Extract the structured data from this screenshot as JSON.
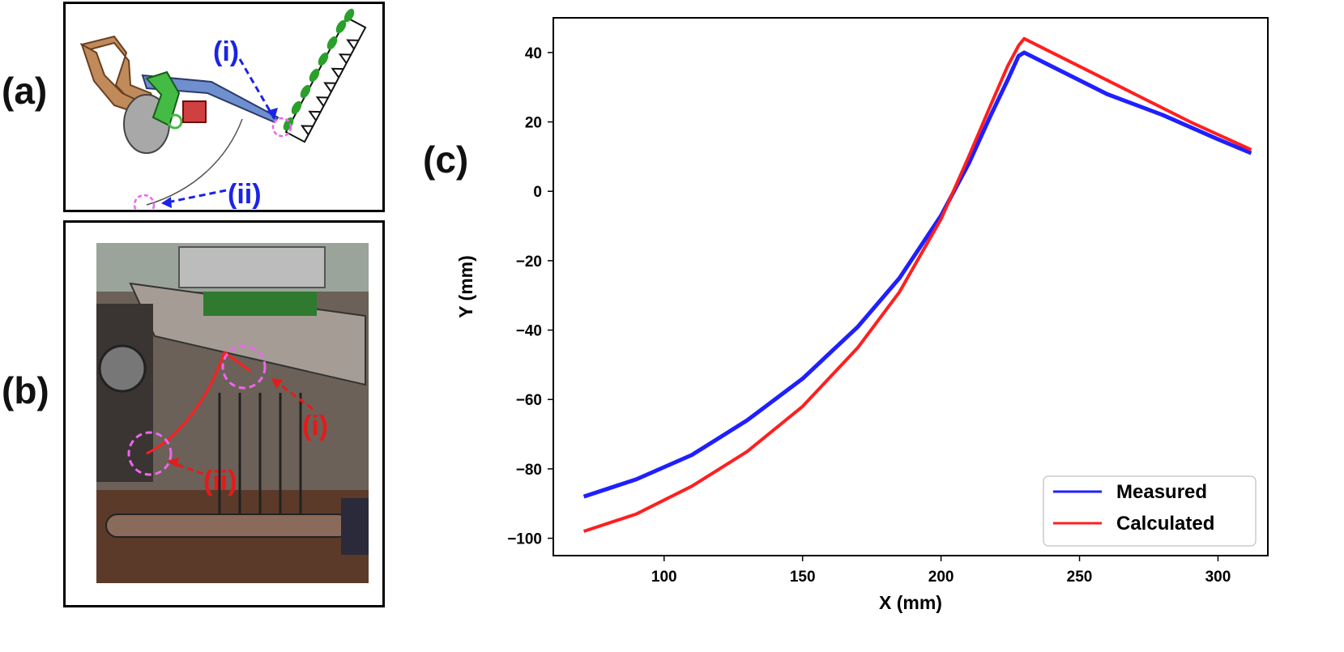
{
  "panels": {
    "a": {
      "label": "(a)",
      "callouts": {
        "i": "(i)",
        "ii": "(ii)"
      },
      "colors": {
        "callout": "#1a24e6",
        "circle": "#ee66ee",
        "frame": "#c08a5a",
        "arm": "#6f8fcf",
        "gear": "#44bb44",
        "block": "#d04040",
        "leaf": "#2aa02a"
      }
    },
    "b": {
      "label": "(b)",
      "callouts": {
        "i": "(i)",
        "ii": "(ii)"
      },
      "colors": {
        "callout": "#e61a1a",
        "circle": "#ee66ee"
      }
    },
    "c": {
      "label": "(c)"
    }
  },
  "chart_data": {
    "type": "line",
    "title": "",
    "xlabel": "X (mm)",
    "ylabel": "Y (mm)",
    "xlim": [
      60,
      318
    ],
    "ylim": [
      -105,
      50
    ],
    "xticks": [
      100,
      150,
      200,
      250,
      300
    ],
    "yticks": [
      -100,
      -80,
      -60,
      -40,
      -20,
      0,
      20,
      40
    ],
    "grid": false,
    "legend_position": "bottom-right",
    "series": [
      {
        "name": "Measured",
        "color": "#1f1fff",
        "x": [
          71,
          90,
          110,
          130,
          150,
          170,
          185,
          200,
          210,
          218,
          224,
          228,
          230,
          240,
          260,
          280,
          300,
          312
        ],
        "y": [
          -88,
          -83,
          -76,
          -66,
          -54,
          -39,
          -25,
          -7,
          8,
          22,
          32,
          39,
          40,
          36,
          28,
          22,
          15,
          11
        ]
      },
      {
        "name": "Calculated",
        "color": "#ff1f1f",
        "x": [
          71,
          90,
          110,
          130,
          150,
          170,
          185,
          200,
          210,
          218,
          224,
          228,
          230,
          250,
          270,
          290,
          312
        ],
        "y": [
          -98,
          -93,
          -85,
          -75,
          -62,
          -45,
          -29,
          -8,
          10,
          25,
          36,
          42,
          44,
          36,
          28,
          20,
          12
        ]
      }
    ]
  }
}
